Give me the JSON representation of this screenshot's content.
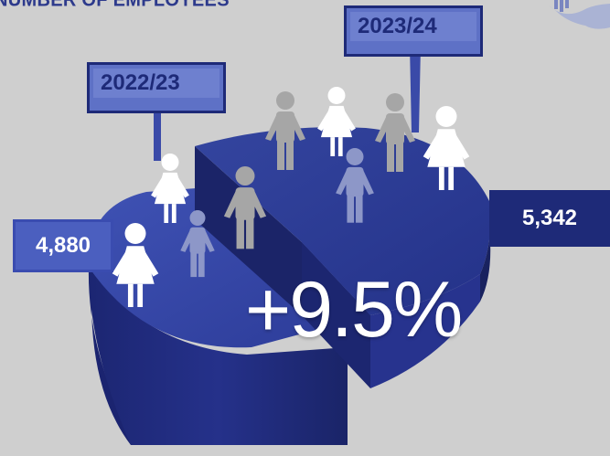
{
  "title": "NUMBER OF EMPLOYEES",
  "colors": {
    "background": "#cfcfcf",
    "dark_blue": "#1e2a78",
    "mid_blue": "#2e3d9a",
    "light_blue": "#4b5fbf",
    "tag_blue": "#5e71c6",
    "figure_grey": "#a6a6a6",
    "figure_blue": "#8d97c8",
    "figure_white": "#ffffff"
  },
  "change_label": "+9.5%",
  "chart_data": {
    "type": "pie",
    "title": "NUMBER OF EMPLOYEES",
    "categories": [
      "2022/23",
      "2023/24"
    ],
    "values": [
      4880,
      5342
    ],
    "value_labels": [
      "4,880",
      "5,342"
    ],
    "annotation": "+9.5%"
  }
}
